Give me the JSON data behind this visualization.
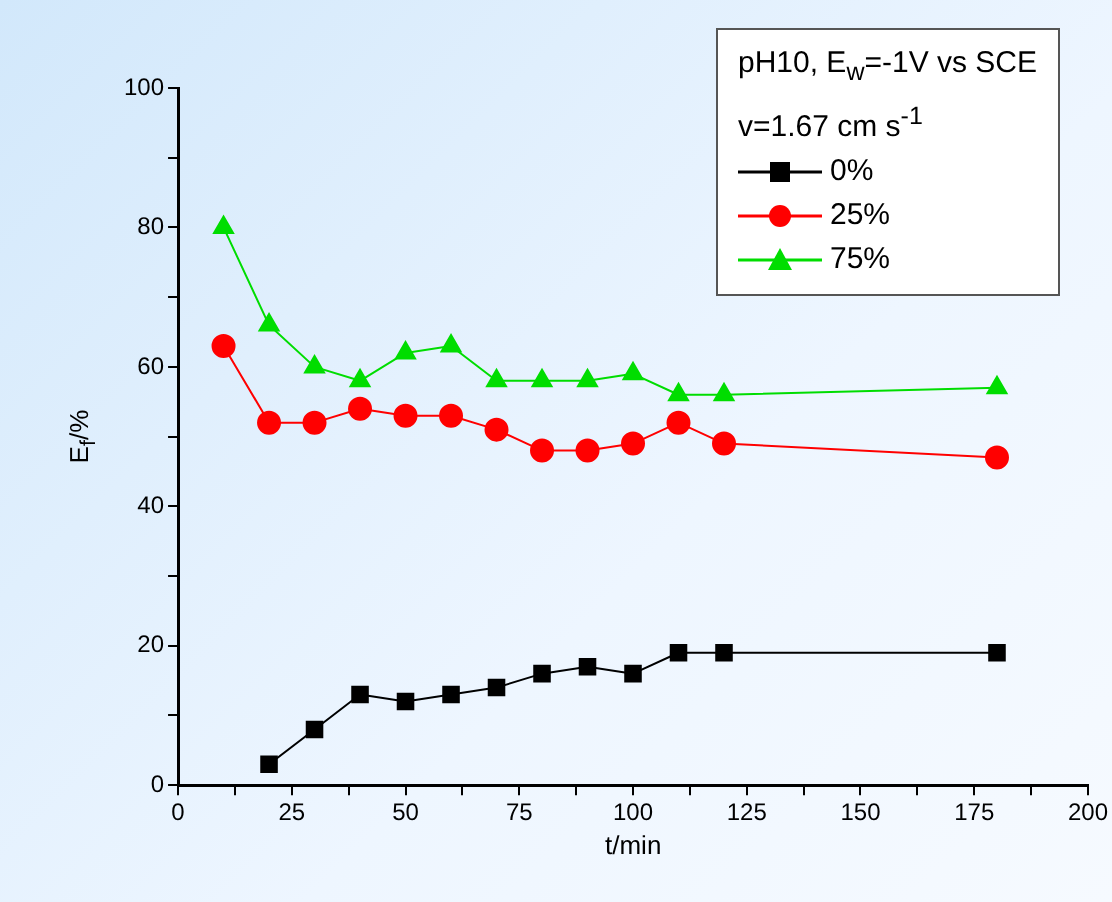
{
  "chart_data": {
    "type": "line",
    "xlabel": "t/min",
    "ylabel": "E$_{f}$/%",
    "legend_title": "pH10, E$_{w}$=-1V vs SCE\nv=1.67 cm s$^{-1}$",
    "legend": "top right",
    "grid": false,
    "x": [
      10,
      20,
      30,
      40,
      50,
      60,
      70,
      80,
      90,
      100,
      110,
      120,
      180
    ],
    "xlim": [
      0,
      200
    ],
    "xticks": [
      0,
      {
        "value": 12.5,
        "label": null
      },
      25,
      {
        "value": 37.5,
        "label": null
      },
      50,
      {
        "value": 62.5,
        "label": null
      },
      75,
      {
        "value": 87.5,
        "label": null
      },
      100,
      {
        "value": 112.5,
        "label": null
      },
      125,
      {
        "value": 137.5,
        "label": null
      },
      150,
      {
        "value": 162.5,
        "label": null
      },
      175,
      {
        "value": 187.5,
        "label": null
      },
      200
    ],
    "ylim": [
      0,
      100
    ],
    "yticks": [
      0,
      {
        "value": 10,
        "label": null
      },
      20,
      {
        "value": 30,
        "label": null
      },
      40,
      {
        "value": 50,
        "label": null
      },
      60,
      {
        "value": 70,
        "label": null
      },
      80,
      {
        "value": 90,
        "label": null
      },
      100
    ],
    "series": [
      {
        "name": "0%",
        "color": "#000000",
        "marker": "square",
        "values": [
          null,
          3,
          8,
          13,
          12,
          13,
          14,
          16,
          17,
          16,
          19,
          19,
          19
        ]
      },
      {
        "name": "25%",
        "color": "#ff0000",
        "marker": "circle",
        "values": [
          63,
          52,
          52,
          54,
          53,
          53,
          51,
          48,
          48,
          49,
          52,
          49,
          47
        ]
      },
      {
        "name": "75%",
        "color": "#00dd00",
        "marker": "triangle",
        "values": [
          80,
          66,
          60,
          58,
          62,
          63,
          58,
          58,
          58,
          59,
          56,
          56,
          57
        ]
      }
    ]
  }
}
